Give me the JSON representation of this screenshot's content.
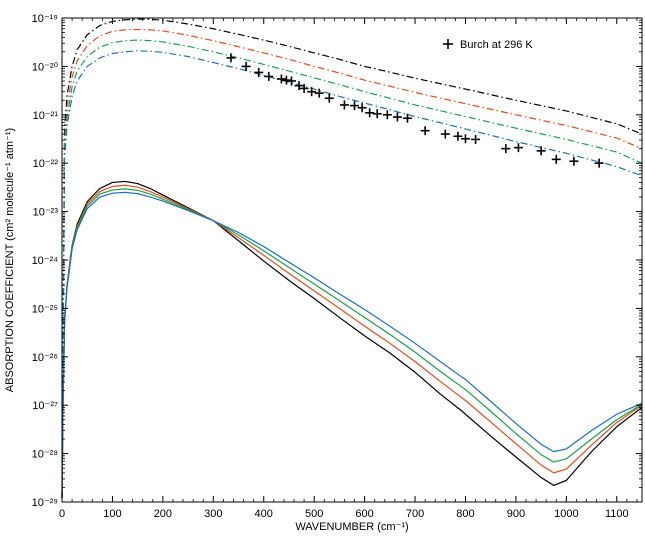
{
  "chart_data": {
    "type": "line",
    "title": "",
    "xlabel": "WAVENUMBER (cm⁻¹)",
    "ylabel": "ABSORPTION COEFFICIENT (cm² molecule⁻¹ atm⁻¹)",
    "xlim": [
      0,
      1150
    ],
    "ylim": [
      1e-29,
      1e-19
    ],
    "yscale": "log",
    "grid": false,
    "legend_position": "top-right",
    "x_ticks": [
      0,
      100,
      200,
      300,
      400,
      500,
      600,
      700,
      800,
      900,
      1000,
      1100
    ],
    "y_ticks": [
      {
        "exp": -29,
        "label": "10⁻²⁹"
      },
      {
        "exp": -28,
        "label": "10⁻²⁸"
      },
      {
        "exp": -27,
        "label": "10⁻²⁷"
      },
      {
        "exp": -26,
        "label": "10⁻²⁶"
      },
      {
        "exp": -25,
        "label": "10⁻²⁵"
      },
      {
        "exp": -24,
        "label": "10⁻²⁴"
      },
      {
        "exp": -23,
        "label": "10⁻²³"
      },
      {
        "exp": -22,
        "label": "10⁻²²"
      },
      {
        "exp": -21,
        "label": "10⁻²¹"
      },
      {
        "exp": -20,
        "label": "10⁻²⁰"
      },
      {
        "exp": -19,
        "label": "10⁻¹⁹"
      }
    ],
    "series": [
      {
        "color": "#000000",
        "style": "dashdot",
        "x": [
          0,
          5,
          10,
          20,
          30,
          50,
          75,
          100,
          125,
          150,
          175,
          200,
          250,
          300,
          350,
          400,
          450,
          500,
          550,
          600,
          650,
          700,
          800,
          900,
          1000,
          1100,
          1150
        ],
        "y": [
          1.2e-29,
          5e-22,
          2.5e-21,
          1e-20,
          2.2e-20,
          4.5e-20,
          7e-20,
          8.5e-20,
          9.2e-20,
          9.5e-20,
          9.4e-20,
          9e-20,
          7.5e-20,
          6e-20,
          4.6e-20,
          3.5e-20,
          2.6e-20,
          1.9e-20,
          1.4e-20,
          1e-20,
          7.6e-21,
          5.7e-21,
          3.4e-21,
          2e-21,
          1.2e-21,
          6.5e-22,
          4e-22
        ]
      },
      {
        "color": "#e8491d",
        "style": "dashdot",
        "x": [
          0,
          5,
          10,
          20,
          30,
          50,
          75,
          100,
          125,
          150,
          175,
          200,
          250,
          300,
          350,
          400,
          450,
          500,
          550,
          600,
          650,
          700,
          800,
          900,
          1000,
          1100,
          1150
        ],
        "y": [
          1.2e-29,
          3e-22,
          1.5e-21,
          6e-21,
          1.3e-20,
          2.7e-20,
          4.3e-20,
          5.3e-20,
          5.7e-20,
          5.8e-20,
          5.7e-20,
          5.4e-20,
          4.4e-20,
          3.4e-20,
          2.55e-20,
          1.9e-20,
          1.4e-20,
          1e-20,
          7.3e-21,
          5.2e-21,
          3.9e-21,
          2.9e-21,
          1.7e-21,
          1e-21,
          6e-22,
          3.3e-22,
          2e-22
        ]
      },
      {
        "color": "#17a34a",
        "style": "dashdot",
        "x": [
          0,
          5,
          10,
          20,
          30,
          50,
          75,
          100,
          125,
          150,
          175,
          200,
          250,
          300,
          350,
          400,
          450,
          500,
          550,
          600,
          650,
          700,
          800,
          900,
          1000,
          1100,
          1150
        ],
        "y": [
          1.2e-29,
          2e-22,
          9e-22,
          3.8e-21,
          8e-21,
          1.6e-20,
          2.5e-20,
          3.1e-20,
          3.4e-20,
          3.5e-20,
          3.4e-20,
          3.2e-20,
          2.6e-20,
          2e-20,
          1.5e-20,
          1.1e-20,
          8e-21,
          5.8e-21,
          4.2e-21,
          3e-21,
          2.2e-21,
          1.6e-21,
          9.2e-22,
          5.3e-22,
          3.1e-22,
          1.7e-22,
          1e-22
        ]
      },
      {
        "color": "#1f6fb5",
        "style": "dashdot",
        "x": [
          0,
          5,
          10,
          20,
          30,
          50,
          75,
          100,
          125,
          150,
          175,
          200,
          250,
          300,
          350,
          400,
          450,
          500,
          550,
          600,
          650,
          700,
          800,
          900,
          1000,
          1100,
          1150
        ],
        "y": [
          1.2e-29,
          1.2e-22,
          6e-22,
          2.4e-21,
          5e-21,
          1e-20,
          1.5e-20,
          1.85e-20,
          2e-20,
          2.1e-20,
          2.05e-20,
          1.95e-20,
          1.6e-20,
          1.2e-20,
          9e-21,
          6.5e-21,
          4.7e-21,
          3.4e-21,
          2.4e-21,
          1.75e-21,
          1.27e-21,
          9.2e-22,
          5.1e-22,
          2.8e-22,
          1.6e-22,
          8.5e-23,
          5.5e-23
        ]
      },
      {
        "color": "#000000",
        "style": "solid",
        "x": [
          0,
          2,
          5,
          10,
          15,
          20,
          30,
          50,
          75,
          100,
          125,
          150,
          175,
          200,
          250,
          300,
          350,
          400,
          450,
          500,
          550,
          600,
          650,
          700,
          750,
          790,
          800,
          850,
          900,
          950,
          975,
          1000,
          1050,
          1100,
          1150
        ],
        "y": [
          1.2e-29,
          1e-27,
          5e-26,
          3e-25,
          8e-25,
          2e-24,
          5.5e-24,
          1.6e-23,
          3e-23,
          4e-23,
          4.2e-23,
          3.8e-23,
          3e-23,
          2.2e-23,
          1.2e-23,
          6.5e-24,
          2.5e-24,
          9.5e-25,
          3.8e-25,
          1.6e-25,
          6.5e-26,
          2.7e-26,
          1.2e-26,
          4.8e-27,
          1.7e-27,
          8e-28,
          6.5e-28,
          2.3e-28,
          8.5e-29,
          3.2e-29,
          2.2e-29,
          2.8e-29,
          1.1e-28,
          3.6e-28,
          9e-28
        ]
      },
      {
        "color": "#e8491d",
        "style": "solid",
        "x": [
          0,
          2,
          5,
          10,
          15,
          20,
          30,
          50,
          75,
          100,
          125,
          150,
          175,
          200,
          250,
          300,
          350,
          400,
          450,
          500,
          550,
          600,
          650,
          700,
          750,
          790,
          800,
          850,
          900,
          950,
          975,
          1000,
          1050,
          1100,
          1150
        ],
        "y": [
          1.2e-29,
          1e-27,
          5e-26,
          3e-25,
          7.5e-25,
          1.9e-24,
          5e-24,
          1.45e-23,
          2.6e-23,
          3.3e-23,
          3.5e-23,
          3.2e-23,
          2.6e-23,
          2e-23,
          1.15e-23,
          6.5e-24,
          2.9e-24,
          1.25e-24,
          5.3e-25,
          2.3e-25,
          1e-25,
          4.3e-26,
          1.9e-26,
          8e-27,
          3.1e-27,
          1.5e-27,
          1.25e-27,
          4.5e-28,
          1.6e-28,
          5.8e-29,
          4e-29,
          4.8e-29,
          1.5e-28,
          4.4e-28,
          1e-27
        ]
      },
      {
        "color": "#17a34a",
        "style": "solid",
        "x": [
          0,
          2,
          5,
          10,
          15,
          20,
          30,
          50,
          75,
          100,
          125,
          150,
          175,
          200,
          250,
          300,
          350,
          400,
          450,
          500,
          550,
          600,
          650,
          700,
          750,
          790,
          800,
          850,
          900,
          950,
          975,
          1000,
          1050,
          1100,
          1150
        ],
        "y": [
          1.2e-29,
          1e-27,
          5e-26,
          2.9e-25,
          7e-25,
          1.8e-24,
          4.6e-24,
          1.3e-23,
          2.3e-23,
          2.8e-23,
          2.95e-23,
          2.75e-23,
          2.3e-23,
          1.8e-23,
          1.1e-23,
          6.5e-24,
          3.3e-24,
          1.55e-24,
          7e-25,
          3.2e-25,
          1.45e-25,
          6.5e-26,
          2.9e-26,
          1.25e-26,
          5e-27,
          2.5e-27,
          2.1e-27,
          7.5e-28,
          2.6e-28,
          9.5e-29,
          6.7e-29,
          7.8e-29,
          2e-28,
          5e-28,
          1.05e-27
        ]
      },
      {
        "color": "#1f6fb5",
        "style": "solid",
        "x": [
          0,
          2,
          5,
          10,
          15,
          20,
          30,
          50,
          75,
          100,
          125,
          150,
          175,
          200,
          250,
          300,
          350,
          400,
          450,
          500,
          550,
          600,
          650,
          700,
          750,
          790,
          800,
          850,
          900,
          950,
          975,
          1000,
          1050,
          1100,
          1150
        ],
        "y": [
          1.2e-29,
          1e-27,
          5e-26,
          2.8e-25,
          6.5e-25,
          1.7e-24,
          4.2e-24,
          1.15e-23,
          2e-23,
          2.4e-23,
          2.5e-23,
          2.35e-23,
          2e-23,
          1.65e-23,
          1.05e-23,
          6.5e-24,
          3.7e-24,
          1.9e-24,
          9e-25,
          4.3e-25,
          2e-25,
          9.5e-26,
          4.3e-26,
          1.9e-26,
          8e-27,
          4e-27,
          3.4e-27,
          1.2e-27,
          4.2e-28,
          1.55e-28,
          1.1e-28,
          1.25e-28,
          3e-28,
          6.5e-28,
          1.1e-27
        ]
      }
    ],
    "markers": {
      "name": "Burch at 296 K",
      "symbol": "+",
      "color": "#000000",
      "x": [
        335,
        365,
        390,
        410,
        435,
        445,
        455,
        470,
        480,
        495,
        510,
        530,
        560,
        580,
        595,
        610,
        625,
        645,
        665,
        685,
        720,
        760,
        785,
        800,
        820,
        880,
        905,
        950,
        980,
        1015,
        1065
      ],
      "y": [
        1.5e-20,
        1e-20,
        7.5e-21,
        6.2e-21,
        5.5e-21,
        5.2e-21,
        5e-21,
        4e-21,
        3.5e-21,
        3e-21,
        2.8e-21,
        2.2e-21,
        1.6e-21,
        1.55e-21,
        1.4e-21,
        1.1e-21,
        1.05e-21,
        1e-21,
        9e-22,
        8.5e-22,
        4.7e-22,
        4e-22,
        3.6e-22,
        3.2e-22,
        3.1e-22,
        2e-22,
        2.1e-22,
        1.8e-22,
        1.2e-22,
        1.1e-22,
        1e-22
      ]
    }
  }
}
